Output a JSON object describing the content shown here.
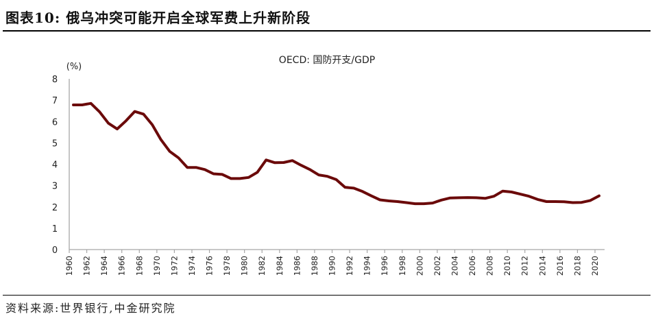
{
  "figure": {
    "title_prefix": "图表10:",
    "title_text": "俄乌冲突可能开启全球军费上升新阶段",
    "source": "资料来源:世界银行,中金研究院"
  },
  "colors": {
    "series_line": "#6b0a0a",
    "axis": "#a6a6a6",
    "text": "#222222"
  },
  "chart_data": {
    "type": "line",
    "title": "OECD: 国防开支/GDP",
    "xlabel": "",
    "ylabel": "(%)",
    "ylim": [
      0,
      8
    ],
    "yticks": [
      0,
      1,
      2,
      3,
      4,
      5,
      6,
      7,
      8
    ],
    "xlim": [
      1960,
      2020
    ],
    "xticks": [
      1960,
      1962,
      1964,
      1966,
      1968,
      1970,
      1972,
      1974,
      1976,
      1978,
      1980,
      1982,
      1984,
      1986,
      1988,
      1990,
      1992,
      1994,
      1996,
      1998,
      2000,
      2002,
      2004,
      2006,
      2008,
      2010,
      2012,
      2014,
      2016,
      2018,
      2020
    ],
    "grid": false,
    "legend": "none",
    "x": [
      1960,
      1961,
      1962,
      1963,
      1964,
      1965,
      1966,
      1967,
      1968,
      1969,
      1970,
      1971,
      1972,
      1973,
      1974,
      1975,
      1976,
      1977,
      1978,
      1979,
      1980,
      1981,
      1982,
      1983,
      1984,
      1985,
      1986,
      1987,
      1988,
      1989,
      1990,
      1991,
      1992,
      1993,
      1994,
      1995,
      1996,
      1997,
      1998,
      1999,
      2000,
      2001,
      2002,
      2003,
      2004,
      2005,
      2006,
      2007,
      2008,
      2009,
      2010,
      2011,
      2012,
      2013,
      2014,
      2015,
      2016,
      2017,
      2018,
      2019,
      2020
    ],
    "series": [
      {
        "name": "OECD: 国防开支/GDP",
        "values": [
          6.78,
          6.78,
          6.85,
          6.45,
          5.92,
          5.65,
          6.03,
          6.47,
          6.35,
          5.85,
          5.15,
          4.6,
          4.3,
          3.85,
          3.85,
          3.75,
          3.55,
          3.52,
          3.33,
          3.33,
          3.38,
          3.62,
          4.2,
          4.07,
          4.08,
          4.17,
          3.95,
          3.75,
          3.5,
          3.43,
          3.28,
          2.92,
          2.88,
          2.72,
          2.52,
          2.33,
          2.28,
          2.25,
          2.2,
          2.15,
          2.15,
          2.18,
          2.32,
          2.42,
          2.43,
          2.44,
          2.43,
          2.4,
          2.5,
          2.74,
          2.7,
          2.6,
          2.5,
          2.35,
          2.25,
          2.25,
          2.24,
          2.2,
          2.21,
          2.3,
          2.52
        ]
      }
    ]
  }
}
